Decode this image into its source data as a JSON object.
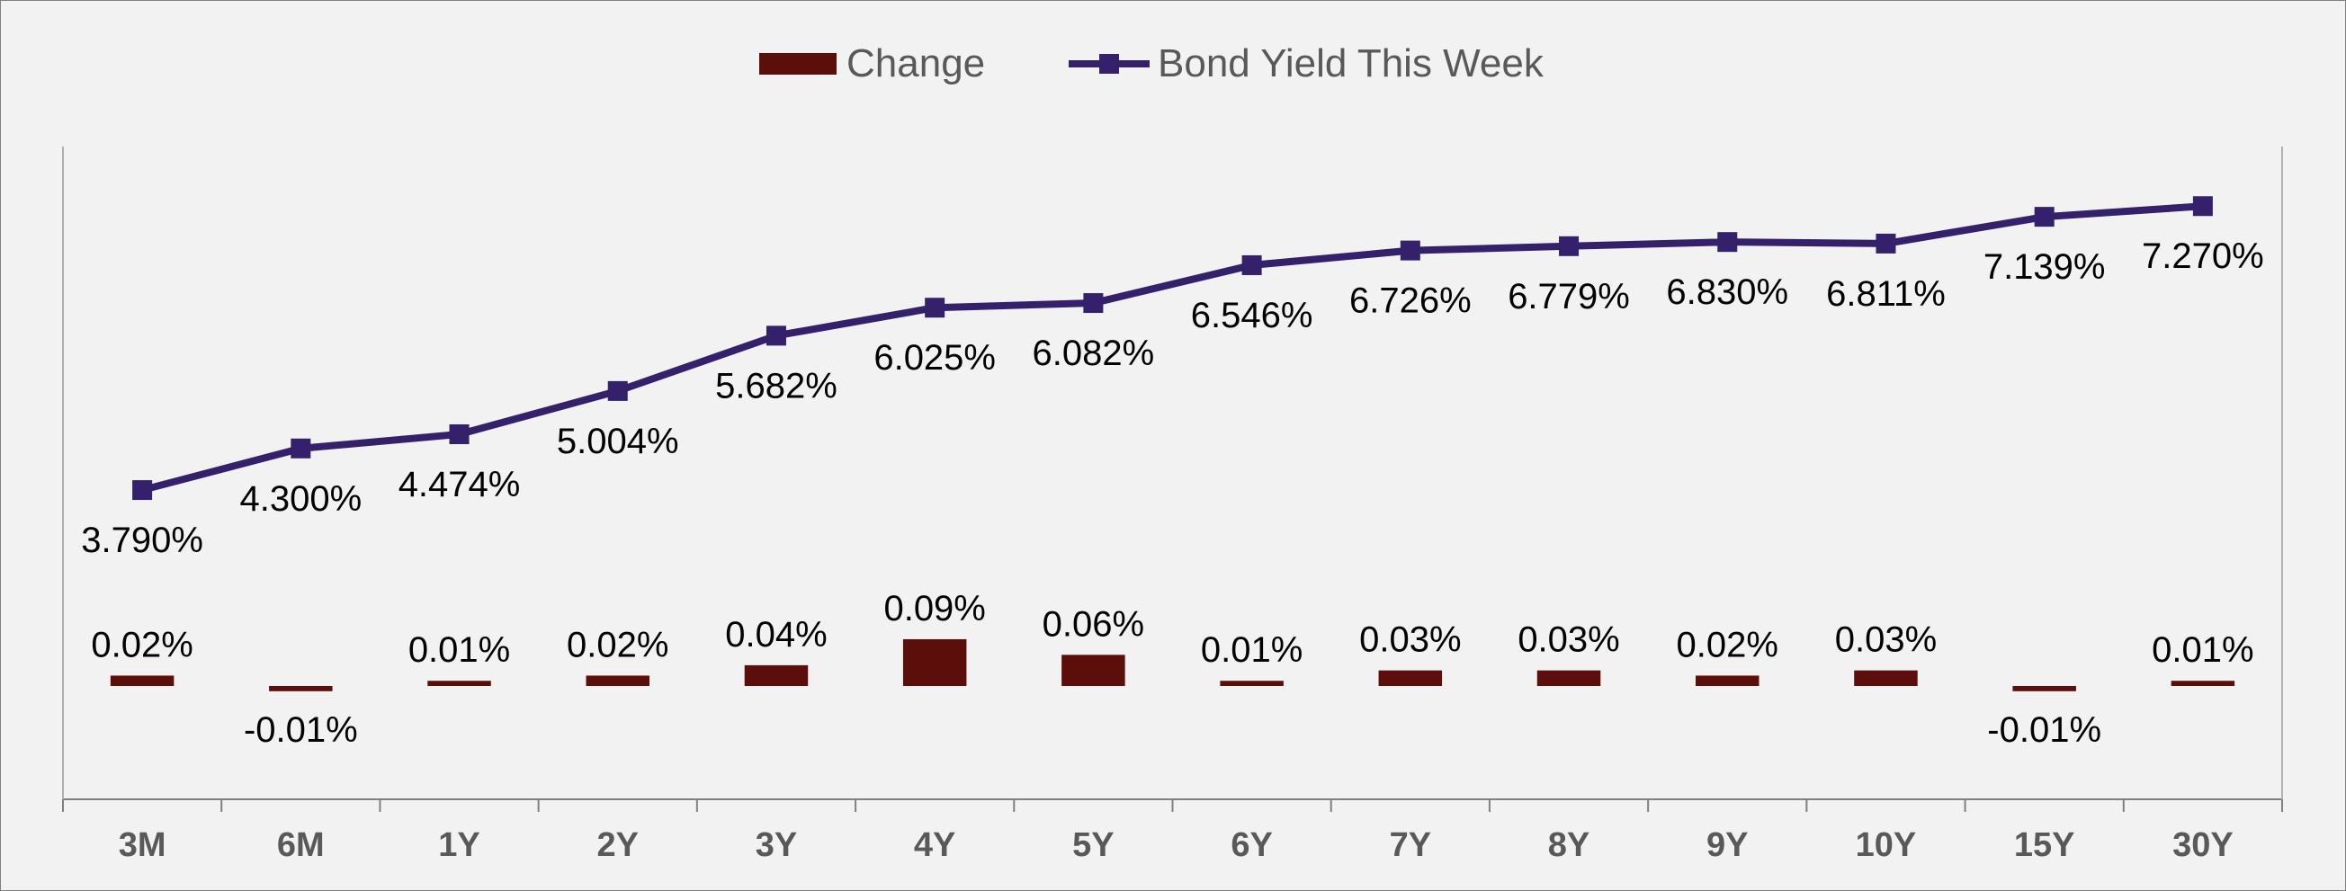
{
  "chart_data": {
    "type": "bar",
    "categories": [
      "3M",
      "6M",
      "1Y",
      "2Y",
      "3Y",
      "4Y",
      "5Y",
      "6Y",
      "7Y",
      "8Y",
      "9Y",
      "10Y",
      "15Y",
      "30Y"
    ],
    "series": [
      {
        "name": "Change",
        "type": "bar",
        "axis": "secondary",
        "values": [
          0.02,
          -0.01,
          0.01,
          0.02,
          0.04,
          0.09,
          0.06,
          0.01,
          0.03,
          0.03,
          0.02,
          0.03,
          -0.01,
          0.01
        ],
        "labels": [
          "0.02%",
          "-0.01%",
          "0.01%",
          "0.02%",
          "0.04%",
          "0.09%",
          "0.06%",
          "0.01%",
          "0.03%",
          "0.03%",
          "0.02%",
          "0.03%",
          "-0.01%",
          "0.01%"
        ],
        "color": "#5c0f0a"
      },
      {
        "name": "Bond Yield This Week",
        "type": "line",
        "axis": "primary",
        "marker": "square",
        "values": [
          3.79,
          4.3,
          4.474,
          5.004,
          5.682,
          6.025,
          6.082,
          6.546,
          6.726,
          6.779,
          6.83,
          6.811,
          7.139,
          7.27
        ],
        "labels": [
          "3.790%",
          "4.300%",
          "4.474%",
          "5.004%",
          "5.682%",
          "6.025%",
          "6.082%",
          "6.546%",
          "6.726%",
          "6.779%",
          "6.830%",
          "6.811%",
          "7.139%",
          "7.270%"
        ],
        "color": "#35206b"
      }
    ],
    "legend": "top-center",
    "grid": false,
    "title": "",
    "xlabel": "",
    "ylabel": ""
  }
}
